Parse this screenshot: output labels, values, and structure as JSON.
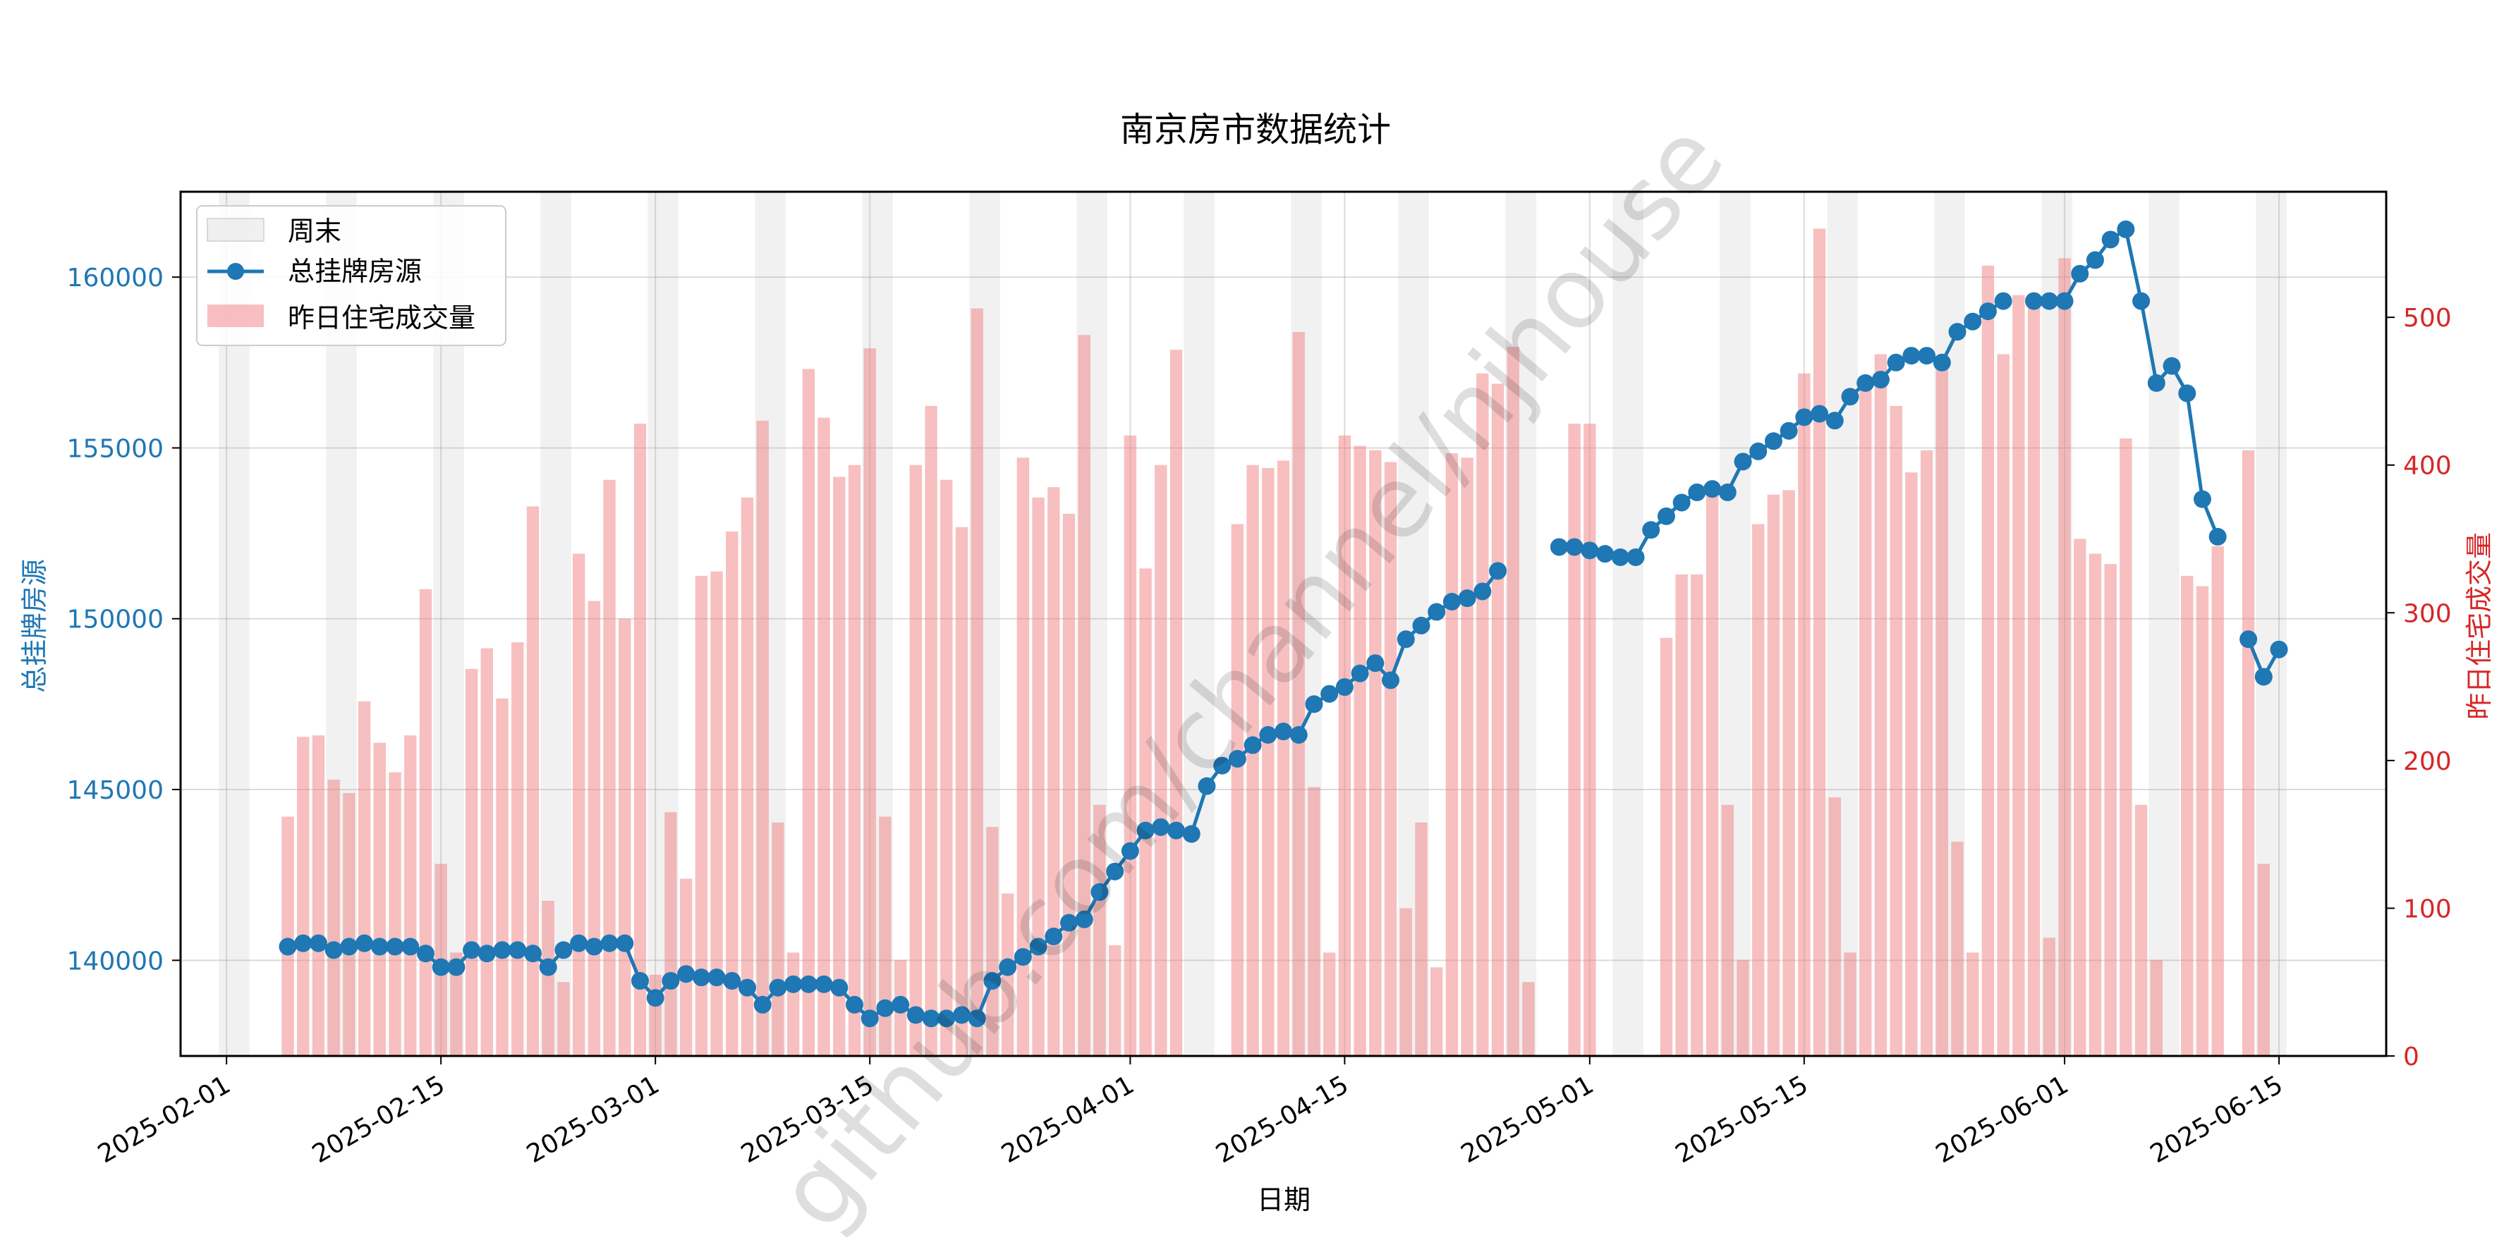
{
  "chart_data": {
    "type": "bar+line (dual axis)",
    "title": "南京房市数据统计",
    "xlabel": "日期",
    "ylabel_left": "总挂牌房源",
    "ylabel_right": "昨日住宅成交量",
    "watermark": "github.com/channel/njhouse",
    "x_range": [
      "2025-01-29",
      "2025-06-22"
    ],
    "ylim_left": [
      137200,
      162500
    ],
    "ylim_right": [
      0,
      585
    ],
    "xticks": [
      "2025-02-01",
      "2025-02-15",
      "2025-03-01",
      "2025-03-15",
      "2025-04-01",
      "2025-04-15",
      "2025-05-01",
      "2025-05-15",
      "2025-06-01",
      "2025-06-15"
    ],
    "yticks_left": [
      140000,
      145000,
      150000,
      155000,
      160000
    ],
    "yticks_right": [
      0,
      100,
      200,
      300,
      400,
      500
    ],
    "grid": true,
    "legend_position": "upper-left",
    "legend": [
      {
        "label": "周末",
        "kind": "weekend-band"
      },
      {
        "label": "总挂牌房源",
        "kind": "line-marker"
      },
      {
        "label": "昨日住宅成交量",
        "kind": "bar"
      }
    ],
    "colors": {
      "line": "#1f77b4",
      "bar": "#f08080",
      "weekend": "#d3d3d3",
      "left_axis": "#1f77b4",
      "right_axis": "#d62728"
    },
    "weekend_start_dates": [
      "2025-02-01",
      "2025-02-08",
      "2025-02-15",
      "2025-02-22",
      "2025-03-01",
      "2025-03-08",
      "2025-03-15",
      "2025-03-22",
      "2025-03-29",
      "2025-04-05",
      "2025-04-12",
      "2025-04-19",
      "2025-04-26",
      "2025-05-03",
      "2025-05-10",
      "2025-05-17",
      "2025-05-24",
      "2025-05-31",
      "2025-06-07",
      "2025-06-14"
    ],
    "series": [
      {
        "name": "昨日住宅成交量",
        "type": "bar",
        "axis": "right",
        "data": [
          [
            "2025-02-05",
            162
          ],
          [
            "2025-02-06",
            216
          ],
          [
            "2025-02-07",
            217
          ],
          [
            "2025-02-08",
            187
          ],
          [
            "2025-02-09",
            178
          ],
          [
            "2025-02-10",
            240
          ],
          [
            "2025-02-11",
            212
          ],
          [
            "2025-02-12",
            192
          ],
          [
            "2025-02-13",
            217
          ],
          [
            "2025-02-14",
            316
          ],
          [
            "2025-02-15",
            130
          ],
          [
            "2025-02-16",
            70
          ],
          [
            "2025-02-17",
            262
          ],
          [
            "2025-02-18",
            276
          ],
          [
            "2025-02-19",
            242
          ],
          [
            "2025-02-20",
            280
          ],
          [
            "2025-02-21",
            372
          ],
          [
            "2025-02-22",
            105
          ],
          [
            "2025-02-23",
            50
          ],
          [
            "2025-02-24",
            340
          ],
          [
            "2025-02-25",
            308
          ],
          [
            "2025-02-26",
            390
          ],
          [
            "2025-02-27",
            296
          ],
          [
            "2025-02-28",
            428
          ],
          [
            "2025-03-01",
            55
          ],
          [
            "2025-03-02",
            165
          ],
          [
            "2025-03-03",
            120
          ],
          [
            "2025-03-04",
            325
          ],
          [
            "2025-03-05",
            328
          ],
          [
            "2025-03-06",
            355
          ],
          [
            "2025-03-07",
            378
          ],
          [
            "2025-03-08",
            430
          ],
          [
            "2025-03-09",
            158
          ],
          [
            "2025-03-10",
            70
          ],
          [
            "2025-03-11",
            465
          ],
          [
            "2025-03-12",
            432
          ],
          [
            "2025-03-13",
            392
          ],
          [
            "2025-03-14",
            400
          ],
          [
            "2025-03-15",
            479
          ],
          [
            "2025-03-16",
            162
          ],
          [
            "2025-03-17",
            65
          ],
          [
            "2025-03-18",
            400
          ],
          [
            "2025-03-19",
            440
          ],
          [
            "2025-03-20",
            390
          ],
          [
            "2025-03-21",
            358
          ],
          [
            "2025-03-22",
            506
          ],
          [
            "2025-03-23",
            155
          ],
          [
            "2025-03-24",
            110
          ],
          [
            "2025-03-25",
            405
          ],
          [
            "2025-03-26",
            378
          ],
          [
            "2025-03-27",
            385
          ],
          [
            "2025-03-28",
            367
          ],
          [
            "2025-03-29",
            488
          ],
          [
            "2025-03-30",
            170
          ],
          [
            "2025-03-31",
            75
          ],
          [
            "2025-04-01",
            420
          ],
          [
            "2025-04-02",
            330
          ],
          [
            "2025-04-03",
            400
          ],
          [
            "2025-04-04",
            478
          ],
          [
            "2025-04-08",
            360
          ],
          [
            "2025-04-09",
            400
          ],
          [
            "2025-04-10",
            398
          ],
          [
            "2025-04-11",
            403
          ],
          [
            "2025-04-12",
            490
          ],
          [
            "2025-04-13",
            182
          ],
          [
            "2025-04-14",
            70
          ],
          [
            "2025-04-15",
            420
          ],
          [
            "2025-04-16",
            413
          ],
          [
            "2025-04-17",
            410
          ],
          [
            "2025-04-18",
            402
          ],
          [
            "2025-04-19",
            100
          ],
          [
            "2025-04-20",
            158
          ],
          [
            "2025-04-21",
            60
          ],
          [
            "2025-04-22",
            408
          ],
          [
            "2025-04-23",
            405
          ],
          [
            "2025-04-24",
            462
          ],
          [
            "2025-04-25",
            455
          ],
          [
            "2025-04-26",
            480
          ],
          [
            "2025-04-27",
            50
          ],
          [
            "2025-04-30",
            428
          ],
          [
            "2025-05-01",
            428
          ],
          [
            "2025-05-06",
            283
          ],
          [
            "2025-05-07",
            326
          ],
          [
            "2025-05-08",
            326
          ],
          [
            "2025-05-09",
            388
          ],
          [
            "2025-05-10",
            170
          ],
          [
            "2025-05-11",
            65
          ],
          [
            "2025-05-12",
            360
          ],
          [
            "2025-05-13",
            380
          ],
          [
            "2025-05-14",
            383
          ],
          [
            "2025-05-15",
            462
          ],
          [
            "2025-05-16",
            560
          ],
          [
            "2025-05-17",
            175
          ],
          [
            "2025-05-18",
            70
          ],
          [
            "2025-05-19",
            455
          ],
          [
            "2025-05-20",
            475
          ],
          [
            "2025-05-21",
            440
          ],
          [
            "2025-05-22",
            395
          ],
          [
            "2025-05-23",
            410
          ],
          [
            "2025-05-24",
            467
          ],
          [
            "2025-05-25",
            145
          ],
          [
            "2025-05-26",
            70
          ],
          [
            "2025-05-27",
            535
          ],
          [
            "2025-05-28",
            475
          ],
          [
            "2025-05-29",
            515
          ],
          [
            "2025-05-30",
            510
          ],
          [
            "2025-05-31",
            80
          ],
          [
            "2025-06-01",
            540
          ],
          [
            "2025-06-02",
            350
          ],
          [
            "2025-06-03",
            340
          ],
          [
            "2025-06-04",
            333
          ],
          [
            "2025-06-05",
            418
          ],
          [
            "2025-06-06",
            170
          ],
          [
            "2025-06-07",
            65
          ],
          [
            "2025-06-09",
            325
          ],
          [
            "2025-06-10",
            318
          ],
          [
            "2025-06-11",
            345
          ],
          [
            "2025-06-13",
            410
          ],
          [
            "2025-06-14",
            130
          ]
        ]
      },
      {
        "name": "总挂牌房源",
        "type": "line",
        "axis": "left",
        "segments": [
          [
            [
              "2025-02-05",
              140400
            ],
            [
              "2025-02-06",
              140500
            ],
            [
              "2025-02-07",
              140500
            ],
            [
              "2025-02-08",
              140300
            ],
            [
              "2025-02-09",
              140400
            ],
            [
              "2025-02-10",
              140500
            ],
            [
              "2025-02-11",
              140400
            ],
            [
              "2025-02-12",
              140400
            ],
            [
              "2025-02-13",
              140400
            ],
            [
              "2025-02-14",
              140200
            ],
            [
              "2025-02-15",
              139800
            ],
            [
              "2025-02-16",
              139800
            ],
            [
              "2025-02-17",
              140300
            ],
            [
              "2025-02-18",
              140200
            ],
            [
              "2025-02-19",
              140300
            ],
            [
              "2025-02-20",
              140300
            ],
            [
              "2025-02-21",
              140200
            ],
            [
              "2025-02-22",
              139800
            ],
            [
              "2025-02-23",
              140300
            ],
            [
              "2025-02-24",
              140500
            ],
            [
              "2025-02-25",
              140400
            ],
            [
              "2025-02-26",
              140500
            ],
            [
              "2025-02-27",
              140500
            ],
            [
              "2025-02-28",
              139400
            ],
            [
              "2025-03-01",
              138900
            ],
            [
              "2025-03-02",
              139400
            ],
            [
              "2025-03-03",
              139600
            ],
            [
              "2025-03-04",
              139500
            ],
            [
              "2025-03-05",
              139500
            ],
            [
              "2025-03-06",
              139400
            ],
            [
              "2025-03-07",
              139200
            ],
            [
              "2025-03-08",
              138700
            ],
            [
              "2025-03-09",
              139200
            ],
            [
              "2025-03-10",
              139300
            ],
            [
              "2025-03-11",
              139300
            ],
            [
              "2025-03-12",
              139300
            ],
            [
              "2025-03-13",
              139200
            ],
            [
              "2025-03-14",
              138700
            ],
            [
              "2025-03-15",
              138300
            ],
            [
              "2025-03-16",
              138600
            ],
            [
              "2025-03-17",
              138700
            ],
            [
              "2025-03-18",
              138400
            ],
            [
              "2025-03-19",
              138300
            ],
            [
              "2025-03-20",
              138300
            ],
            [
              "2025-03-21",
              138400
            ],
            [
              "2025-03-22",
              138300
            ],
            [
              "2025-03-23",
              139400
            ],
            [
              "2025-03-24",
              139800
            ],
            [
              "2025-03-25",
              140100
            ],
            [
              "2025-03-26",
              140400
            ],
            [
              "2025-03-27",
              140700
            ],
            [
              "2025-03-28",
              141100
            ],
            [
              "2025-03-29",
              141200
            ],
            [
              "2025-03-30",
              142000
            ],
            [
              "2025-03-31",
              142600
            ],
            [
              "2025-04-01",
              143200
            ],
            [
              "2025-04-02",
              143800
            ],
            [
              "2025-04-03",
              143900
            ],
            [
              "2025-04-04",
              143800
            ],
            [
              "2025-04-05",
              143700
            ],
            [
              "2025-04-06",
              145100
            ],
            [
              "2025-04-07",
              145700
            ],
            [
              "2025-04-08",
              145900
            ],
            [
              "2025-04-09",
              146300
            ],
            [
              "2025-04-10",
              146600
            ],
            [
              "2025-04-11",
              146700
            ],
            [
              "2025-04-12",
              146600
            ],
            [
              "2025-04-13",
              147500
            ],
            [
              "2025-04-14",
              147800
            ],
            [
              "2025-04-15",
              148000
            ],
            [
              "2025-04-16",
              148400
            ],
            [
              "2025-04-17",
              148700
            ],
            [
              "2025-04-18",
              148200
            ],
            [
              "2025-04-19",
              149400
            ],
            [
              "2025-04-20",
              149800
            ],
            [
              "2025-04-21",
              150200
            ],
            [
              "2025-04-22",
              150500
            ],
            [
              "2025-04-23",
              150600
            ],
            [
              "2025-04-24",
              150800
            ],
            [
              "2025-04-25",
              151400
            ]
          ],
          [
            [
              "2025-04-29",
              152100
            ],
            [
              "2025-04-30",
              152100
            ],
            [
              "2025-05-01",
              152000
            ],
            [
              "2025-05-02",
              151900
            ],
            [
              "2025-05-03",
              151800
            ],
            [
              "2025-05-04",
              151800
            ],
            [
              "2025-05-05",
              152600
            ],
            [
              "2025-05-06",
              153000
            ],
            [
              "2025-05-07",
              153400
            ],
            [
              "2025-05-08",
              153700
            ],
            [
              "2025-05-09",
              153800
            ],
            [
              "2025-05-10",
              153700
            ],
            [
              "2025-05-11",
              154600
            ],
            [
              "2025-05-12",
              154900
            ],
            [
              "2025-05-13",
              155200
            ],
            [
              "2025-05-14",
              155500
            ],
            [
              "2025-05-15",
              155900
            ],
            [
              "2025-05-16",
              156000
            ],
            [
              "2025-05-17",
              155800
            ],
            [
              "2025-05-18",
              156500
            ],
            [
              "2025-05-19",
              156900
            ],
            [
              "2025-05-20",
              157000
            ],
            [
              "2025-05-21",
              157500
            ],
            [
              "2025-05-22",
              157700
            ],
            [
              "2025-05-23",
              157700
            ],
            [
              "2025-05-24",
              157500
            ],
            [
              "2025-05-25",
              158400
            ],
            [
              "2025-05-26",
              158700
            ],
            [
              "2025-05-27",
              159000
            ],
            [
              "2025-05-28",
              159300
            ]
          ],
          [
            [
              "2025-05-30",
              159300
            ],
            [
              "2025-05-31",
              159300
            ],
            [
              "2025-06-01",
              159300
            ],
            [
              "2025-06-02",
              160100
            ],
            [
              "2025-06-03",
              160500
            ],
            [
              "2025-06-04",
              161100
            ],
            [
              "2025-06-05",
              161400
            ],
            [
              "2025-06-06",
              159300
            ],
            [
              "2025-06-07",
              156900
            ],
            [
              "2025-06-08",
              157400
            ],
            [
              "2025-06-09",
              156600
            ],
            [
              "2025-06-10",
              153500
            ],
            [
              "2025-06-11",
              152400
            ]
          ],
          [
            [
              "2025-06-13",
              149400
            ],
            [
              "2025-06-14",
              148300
            ],
            [
              "2025-06-15",
              149100
            ]
          ]
        ]
      }
    ]
  }
}
